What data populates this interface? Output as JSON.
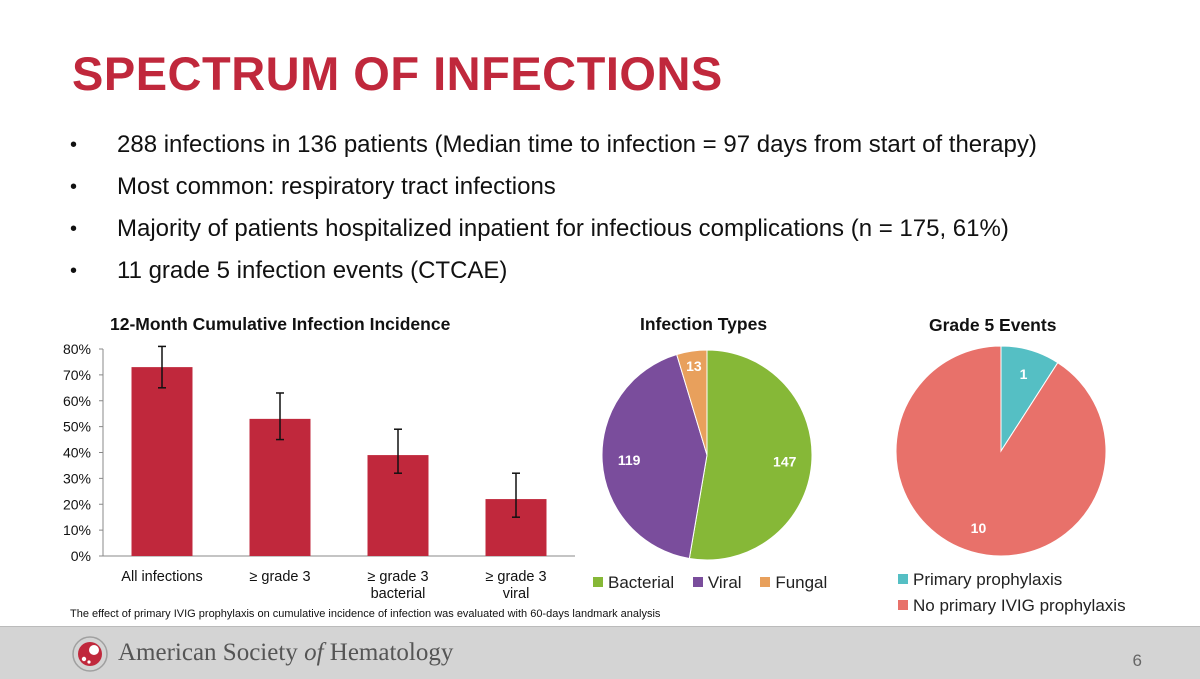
{
  "slide": {
    "title": "SPECTRUM OF INFECTIONS",
    "bullets": [
      "288 infections in 136 patients (Median time to infection = 97 days from start of therapy)",
      "Most common: respiratory tract infections",
      "Majority of patients hospitalized inpatient for infectious complications (n = 175, 61%)",
      "11 grade 5 infection events (CTCAE)"
    ],
    "bullet_glyph": "•",
    "footnote": "The effect of primary IVIG prophylaxis on cumulative incidence of infection was evaluated with 60-days landmark analysis",
    "footer": {
      "org_part1": "American Society ",
      "org_italic": "of",
      "org_part2": " Hematology",
      "page_number": "6"
    },
    "colors": {
      "title": "#c0283c",
      "bar": "#c0283c",
      "bacterial": "#86b837",
      "viral": "#7a4d9c",
      "fungal": "#e8a05c",
      "primary": "#55bfc4",
      "no_primary": "#e8716a"
    }
  },
  "chart_data": [
    {
      "type": "bar",
      "title": "12-Month Cumulative Infection Incidence",
      "categories": [
        "All infections",
        "≥ grade 3",
        "≥ grade 3\nbacterial",
        "≥ grade 3\nviral"
      ],
      "values": [
        73,
        53,
        39,
        22
      ],
      "error_low": [
        65,
        45,
        32,
        15
      ],
      "error_high": [
        81,
        63,
        49,
        32
      ],
      "ylim": [
        0,
        80
      ],
      "yticks": [
        "0%",
        "10%",
        "20%",
        "30%",
        "40%",
        "50%",
        "60%",
        "70%",
        "80%"
      ],
      "xlabel": "",
      "ylabel": ""
    },
    {
      "type": "pie",
      "title": "Infection Types",
      "labels": [
        "Bacterial",
        "Viral",
        "Fungal"
      ],
      "values": [
        147,
        119,
        13
      ],
      "legend": "bottom"
    },
    {
      "type": "pie",
      "title": "Grade 5 Events",
      "labels": [
        "Primary prophylaxis",
        "No primary IVIG prophylaxis"
      ],
      "values": [
        1,
        10
      ],
      "legend": "bottom"
    }
  ]
}
